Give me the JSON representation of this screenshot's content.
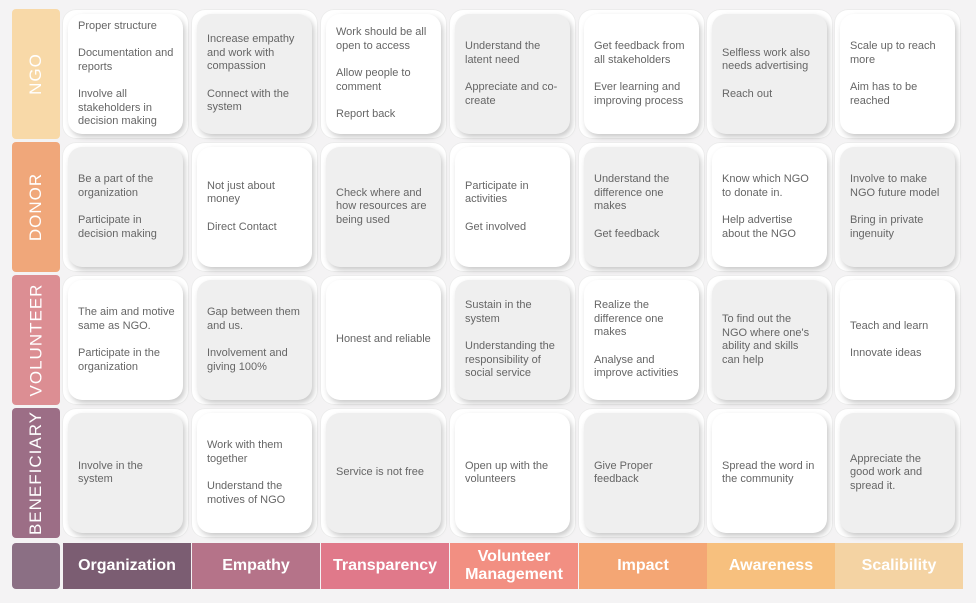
{
  "rows": [
    {
      "label": "NGO",
      "color": "#f8d9a8"
    },
    {
      "label": "DONOR",
      "color": "#f0a77a"
    },
    {
      "label": "VOLUNTEER",
      "color": "#dc8e93"
    },
    {
      "label": "BENEFICIARY",
      "color": "#9c6e86"
    }
  ],
  "columns": [
    {
      "label": "Organization",
      "color": "#7b5d72"
    },
    {
      "label": "Empathy",
      "color": "#b57389"
    },
    {
      "label": "Transparency",
      "color": "#e0798a"
    },
    {
      "label": "Volunteer Management",
      "color": "#f28f82"
    },
    {
      "label": "Impact",
      "color": "#f4a674"
    },
    {
      "label": "Awareness",
      "color": "#f7c07e"
    },
    {
      "label": "Scalibility",
      "color": "#f4d3a3"
    }
  ],
  "cells": [
    [
      {
        "style": "white",
        "items": [
          "Proper structure",
          "Documentation and reports",
          "Involve all stakeholders in decision making"
        ]
      },
      {
        "style": "grey",
        "items": [
          "Increase empathy and work with compassion",
          "Connect with the system"
        ]
      },
      {
        "style": "white",
        "items": [
          "Work should be all open to access",
          "Allow people to comment",
          "Report back"
        ]
      },
      {
        "style": "grey",
        "items": [
          "Understand the latent need",
          "Appreciate and co-create"
        ]
      },
      {
        "style": "white",
        "items": [
          "Get feedback from all stakeholders",
          "Ever learning and improving process"
        ]
      },
      {
        "style": "grey",
        "items": [
          "Selfless work also needs advertising",
          "Reach out"
        ]
      },
      {
        "style": "white",
        "items": [
          "Scale up to reach more",
          "Aim has to be reached"
        ]
      }
    ],
    [
      {
        "style": "grey",
        "items": [
          "Be a part of the organization",
          "Participate in decision making"
        ]
      },
      {
        "style": "white",
        "items": [
          "Not just about money",
          "Direct Contact"
        ]
      },
      {
        "style": "grey",
        "items": [
          "Check where and how resources are being used"
        ]
      },
      {
        "style": "white",
        "items": [
          "Participate in activities",
          "Get involved"
        ]
      },
      {
        "style": "grey",
        "items": [
          "Understand the difference one makes",
          "Get feedback"
        ]
      },
      {
        "style": "white",
        "items": [
          "Know which NGO to donate in.",
          "Help advertise about the NGO"
        ]
      },
      {
        "style": "grey",
        "items": [
          "Involve to make NGO future model",
          "Bring in private ingenuity"
        ]
      }
    ],
    [
      {
        "style": "white",
        "items": [
          "The aim and motive same as NGO.",
          "Participate in the organization"
        ]
      },
      {
        "style": "grey",
        "items": [
          "Gap between them and us.",
          "Involvement and giving 100%"
        ]
      },
      {
        "style": "white",
        "items": [
          "Honest and reliable"
        ]
      },
      {
        "style": "grey",
        "items": [
          "Sustain in the system",
          "Understanding the responsibility of social service"
        ]
      },
      {
        "style": "white",
        "items": [
          "Realize the difference one makes",
          "Analyse and improve activities"
        ]
      },
      {
        "style": "grey",
        "items": [
          "To find out the NGO where one's ability and skills can help"
        ]
      },
      {
        "style": "white",
        "items": [
          "Teach and learn",
          "Innovate ideas"
        ]
      }
    ],
    [
      {
        "style": "grey",
        "items": [
          "Involve in the system"
        ]
      },
      {
        "style": "white",
        "items": [
          "Work with them together",
          "Understand the motives of NGO"
        ]
      },
      {
        "style": "grey",
        "items": [
          "Service is not free"
        ]
      },
      {
        "style": "white",
        "items": [
          "Open up with the volunteers"
        ]
      },
      {
        "style": "grey",
        "items": [
          "Give Proper feedback"
        ]
      },
      {
        "style": "white",
        "items": [
          "Spread the word in the community"
        ]
      },
      {
        "style": "grey",
        "items": [
          "Appreciate the good work and spread it."
        ]
      }
    ]
  ]
}
